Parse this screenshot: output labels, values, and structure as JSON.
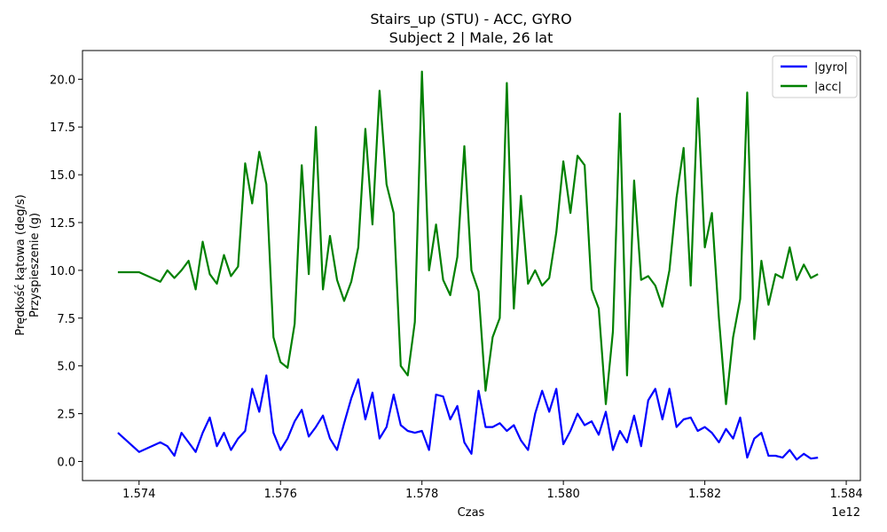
{
  "chart_data": {
    "type": "line",
    "title": "Stairs_up (STU) - ACC, GYRO",
    "subtitle": "Subject 2 | Male, 26 lat",
    "xlabel": "Czas",
    "ylabel_line1": "Prędkość kątowa (deg/s)",
    "ylabel_line2": "Przyspieszenie (g)",
    "x_offset_text": "1e12",
    "xlim": [
      1.5732,
      1.5842
    ],
    "ylim": [
      -1.0,
      21.5
    ],
    "x_ticks": [
      1.574,
      1.576,
      1.578,
      1.58,
      1.582,
      1.584
    ],
    "x_tick_labels": [
      "1.574",
      "1.576",
      "1.578",
      "1.580",
      "1.582",
      "1.584"
    ],
    "y_ticks": [
      0.0,
      2.5,
      5.0,
      7.5,
      10.0,
      12.5,
      15.0,
      17.5,
      20.0
    ],
    "y_tick_labels": [
      "0.0",
      "2.5",
      "5.0",
      "7.5",
      "10.0",
      "12.5",
      "15.0",
      "17.5",
      "20.0"
    ],
    "grid": false,
    "legend_position": "top-right",
    "series": [
      {
        "name": "|gyro|",
        "color": "#0000ff",
        "x": [
          1.5737,
          1.574,
          1.5743,
          1.5744,
          1.5745,
          1.5746,
          1.5748,
          1.5749,
          1.575,
          1.5751,
          1.5752,
          1.5753,
          1.5754,
          1.5755,
          1.5756,
          1.5757,
          1.5758,
          1.5759,
          1.576,
          1.5761,
          1.5762,
          1.5763,
          1.5764,
          1.5765,
          1.5766,
          1.5767,
          1.5768,
          1.5769,
          1.577,
          1.5771,
          1.5772,
          1.5773,
          1.5774,
          1.5775,
          1.5776,
          1.5777,
          1.5778,
          1.5779,
          1.578,
          1.5781,
          1.5782,
          1.5783,
          1.5784,
          1.5785,
          1.5786,
          1.5787,
          1.5788,
          1.5789,
          1.579,
          1.5791,
          1.5792,
          1.5793,
          1.5794,
          1.5795,
          1.5796,
          1.5797,
          1.5798,
          1.5799,
          1.58,
          1.5801,
          1.5802,
          1.5803,
          1.5804,
          1.5805,
          1.5806,
          1.5807,
          1.5808,
          1.5809,
          1.581,
          1.5811,
          1.5812,
          1.5813,
          1.5814,
          1.5815,
          1.5816,
          1.5817,
          1.5818,
          1.5819,
          1.582,
          1.5821,
          1.5822,
          1.5823,
          1.5824,
          1.5825,
          1.5826,
          1.5827,
          1.5828,
          1.5829,
          1.583,
          1.5831,
          1.5832,
          1.5833,
          1.5834,
          1.5835,
          1.5836
        ],
        "values": [
          1.5,
          0.5,
          1.0,
          0.8,
          0.3,
          1.5,
          0.5,
          1.5,
          2.3,
          0.8,
          1.5,
          0.6,
          1.2,
          1.6,
          3.8,
          2.6,
          4.5,
          1.5,
          0.6,
          1.2,
          2.1,
          2.7,
          1.3,
          1.8,
          2.4,
          1.2,
          0.6,
          2.0,
          3.3,
          4.3,
          2.2,
          3.6,
          1.2,
          1.8,
          3.5,
          1.9,
          1.6,
          1.5,
          1.6,
          0.6,
          3.5,
          3.4,
          2.2,
          2.9,
          1.0,
          0.4,
          3.7,
          1.8,
          1.8,
          2.0,
          1.6,
          1.9,
          1.1,
          0.6,
          2.5,
          3.7,
          2.6,
          3.8,
          0.9,
          1.6,
          2.5,
          1.9,
          2.1,
          1.4,
          2.6,
          0.6,
          1.6,
          1.0,
          2.4,
          0.8,
          3.2,
          3.8,
          2.2,
          3.8,
          1.8,
          2.2,
          2.3,
          1.6,
          1.8,
          1.5,
          1.0,
          1.7,
          1.2,
          2.3,
          0.2,
          1.2,
          1.5,
          0.3,
          0.3,
          0.2,
          0.6,
          0.1,
          0.4,
          0.15,
          0.2
        ]
      },
      {
        "name": "|acc|",
        "color": "#008000",
        "x": [
          1.5737,
          1.574,
          1.5743,
          1.5744,
          1.5745,
          1.5746,
          1.5747,
          1.5748,
          1.5749,
          1.575,
          1.5751,
          1.5752,
          1.5753,
          1.5754,
          1.5755,
          1.5756,
          1.5757,
          1.5758,
          1.5759,
          1.576,
          1.5761,
          1.5762,
          1.5763,
          1.5764,
          1.5765,
          1.5766,
          1.5767,
          1.5768,
          1.5769,
          1.577,
          1.5771,
          1.5772,
          1.5773,
          1.5774,
          1.5775,
          1.5776,
          1.5777,
          1.5778,
          1.5779,
          1.578,
          1.5781,
          1.5782,
          1.5783,
          1.5784,
          1.5785,
          1.5786,
          1.5787,
          1.5788,
          1.5789,
          1.579,
          1.5791,
          1.5792,
          1.5793,
          1.5794,
          1.5795,
          1.5796,
          1.5797,
          1.5798,
          1.5799,
          1.58,
          1.5801,
          1.5802,
          1.5803,
          1.5804,
          1.5805,
          1.5806,
          1.5807,
          1.5808,
          1.5809,
          1.581,
          1.5811,
          1.5812,
          1.5813,
          1.5814,
          1.5815,
          1.5816,
          1.5817,
          1.5818,
          1.5819,
          1.582,
          1.5821,
          1.5822,
          1.5823,
          1.5824,
          1.5825,
          1.5826,
          1.5827,
          1.5828,
          1.5829,
          1.583,
          1.5831,
          1.5832,
          1.5833,
          1.5834,
          1.5835,
          1.5836
        ],
        "values": [
          9.9,
          9.9,
          9.4,
          10.0,
          9.6,
          10.0,
          10.5,
          9.0,
          11.5,
          9.8,
          9.3,
          10.8,
          9.7,
          10.2,
          15.6,
          13.5,
          16.2,
          14.5,
          6.5,
          5.2,
          4.9,
          7.2,
          15.5,
          9.8,
          17.5,
          9.0,
          11.8,
          9.5,
          8.4,
          9.4,
          11.2,
          17.4,
          12.4,
          19.4,
          14.5,
          13.0,
          5.0,
          4.5,
          7.3,
          20.4,
          10.0,
          12.4,
          9.5,
          8.7,
          10.7,
          16.5,
          10.0,
          8.9,
          3.7,
          6.5,
          7.5,
          19.8,
          8.0,
          13.9,
          9.3,
          10.0,
          9.2,
          9.6,
          12.0,
          15.7,
          13.0,
          16.0,
          15.5,
          9.0,
          8.0,
          3.0,
          6.8,
          18.2,
          4.5,
          14.7,
          9.5,
          9.7,
          9.2,
          8.1,
          10.0,
          13.8,
          16.4,
          9.2,
          19.0,
          11.2,
          13.0,
          7.5,
          3.0,
          6.5,
          8.5,
          19.3,
          6.4,
          10.5,
          8.2,
          9.8,
          9.6,
          11.2,
          9.5,
          10.3,
          9.6,
          9.8
        ]
      }
    ]
  }
}
